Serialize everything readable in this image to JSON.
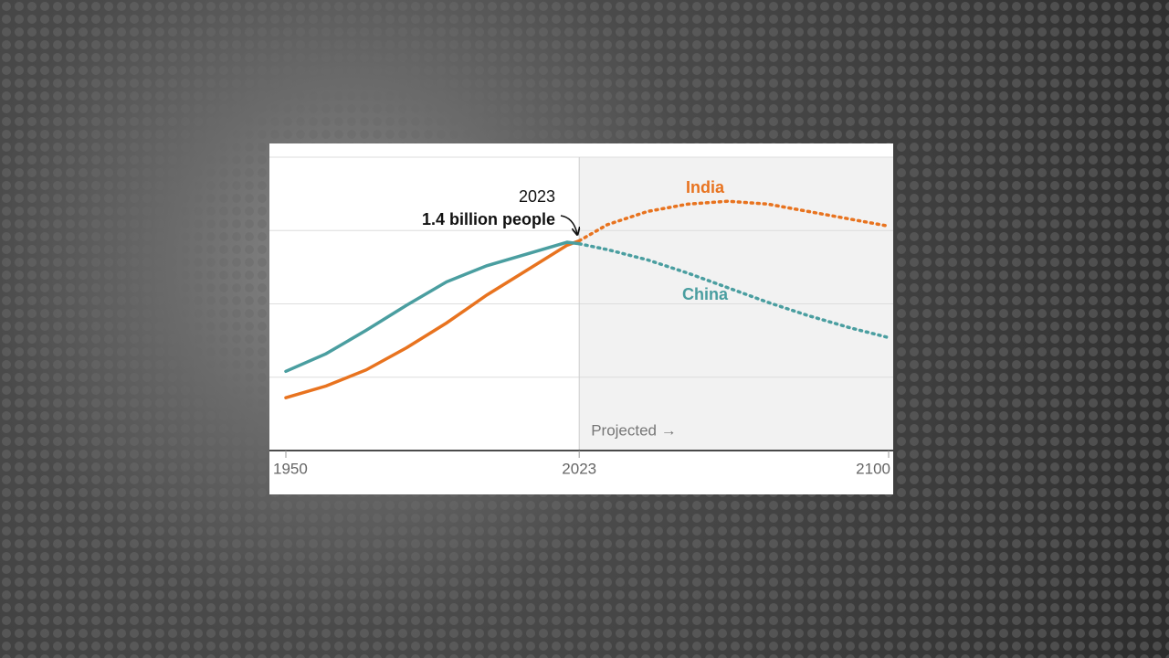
{
  "chart_data": {
    "type": "line",
    "x": [
      1950,
      1960,
      1970,
      1980,
      1990,
      2000,
      2010,
      2020,
      2023,
      2030,
      2040,
      2050,
      2060,
      2070,
      2080,
      2090,
      2100
    ],
    "series": [
      {
        "name": "India",
        "color": "#e8731f",
        "values": [
          0.36,
          0.44,
          0.55,
          0.7,
          0.87,
          1.06,
          1.23,
          1.4,
          1.43,
          1.54,
          1.63,
          1.68,
          1.7,
          1.68,
          1.63,
          1.58,
          1.53
        ]
      },
      {
        "name": "China",
        "color": "#4a9ea0",
        "values": [
          0.54,
          0.66,
          0.82,
          0.99,
          1.15,
          1.26,
          1.34,
          1.42,
          1.41,
          1.37,
          1.3,
          1.21,
          1.11,
          1.01,
          0.92,
          0.84,
          0.77
        ]
      }
    ],
    "xlim": [
      1950,
      2100
    ],
    "xticks": [
      1950,
      2023,
      2100
    ],
    "ylim": [
      0,
      2
    ],
    "ygrid": [
      0.5,
      1,
      1.5
    ],
    "projection_start": 2023,
    "projection_label": "Projected →",
    "annotation": {
      "year": "2023",
      "text": "1.4 billion people"
    }
  }
}
